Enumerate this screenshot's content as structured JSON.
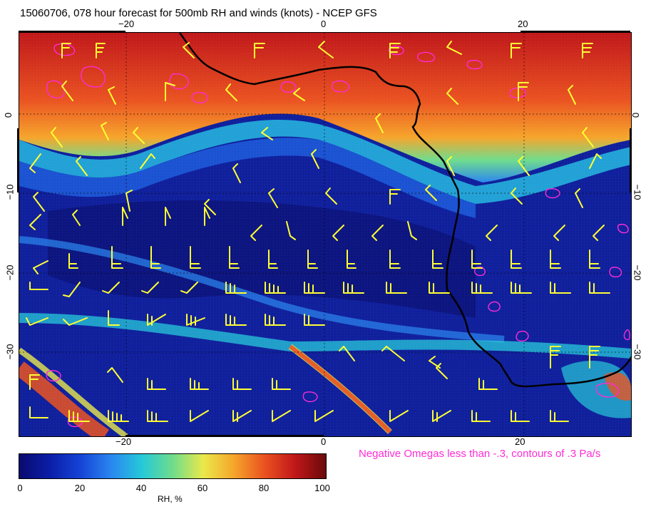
{
  "title": "15060706, 078 hour forecast for 500mb RH and winds (knots) - NCEP GFS",
  "map": {
    "x_ticks_top": [
      "−20",
      "0",
      "20"
    ],
    "x_ticks_bottom": [
      "−20",
      "0",
      "20"
    ],
    "y_ticks_left": [
      "0",
      "−10",
      "−20",
      "−30"
    ],
    "y_ticks_right": [
      "0",
      "−10",
      "−20",
      "−30"
    ],
    "lon_range": [
      -30,
      31
    ],
    "lat_range": [
      -40,
      10
    ],
    "overlay_note": "Negative Omegas less than -.3, contours of .3 Pa/s",
    "barb_color": "#ffff33",
    "omega_color": "#ff2bd6",
    "coast_color": "#000000"
  },
  "colorbar": {
    "ticks": [
      "0",
      "20",
      "40",
      "60",
      "80",
      "100"
    ],
    "label": "RH, %",
    "min": 0,
    "max": 100
  }
}
